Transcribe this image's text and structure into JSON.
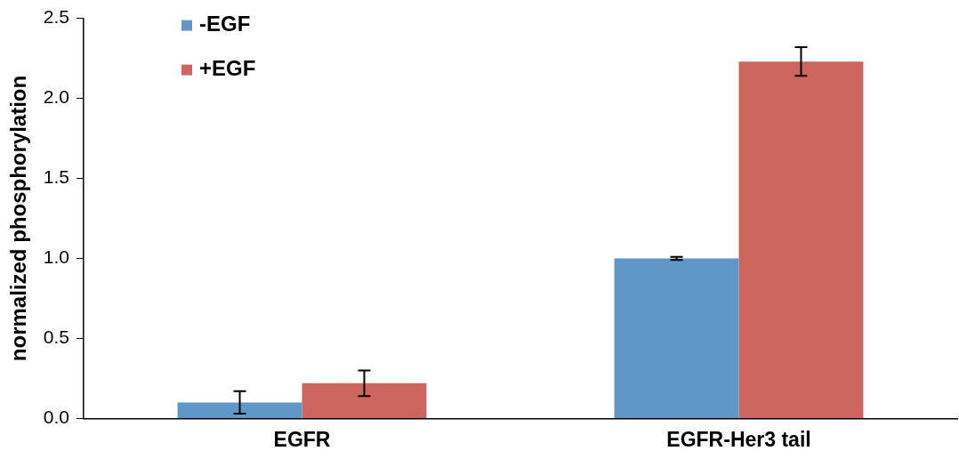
{
  "chart_data": {
    "type": "bar",
    "ylabel": "normalized phosphorylation",
    "categories": [
      "EGFR",
      "EGFR-Her3 tail"
    ],
    "series": [
      {
        "name": "-EGF",
        "color": "#6097c9",
        "values": [
          0.1,
          1.0
        ],
        "errors": [
          0.07,
          0.01
        ]
      },
      {
        "name": "+EGF",
        "color": "#cd665e",
        "values": [
          0.22,
          2.23
        ],
        "errors": [
          0.08,
          0.09
        ]
      }
    ],
    "ylim": [
      0,
      2.5
    ],
    "yticks": [
      {
        "value": 0,
        "label": "0.0"
      },
      {
        "value": 0.5,
        "label": "0.5"
      },
      {
        "value": 1,
        "label": "1.0"
      },
      {
        "value": 1.5,
        "label": "1.5"
      },
      {
        "value": 2,
        "label": "2.0"
      },
      {
        "value": 2.5,
        "label": "2.5"
      }
    ],
    "grid": false,
    "legend": "top left"
  }
}
